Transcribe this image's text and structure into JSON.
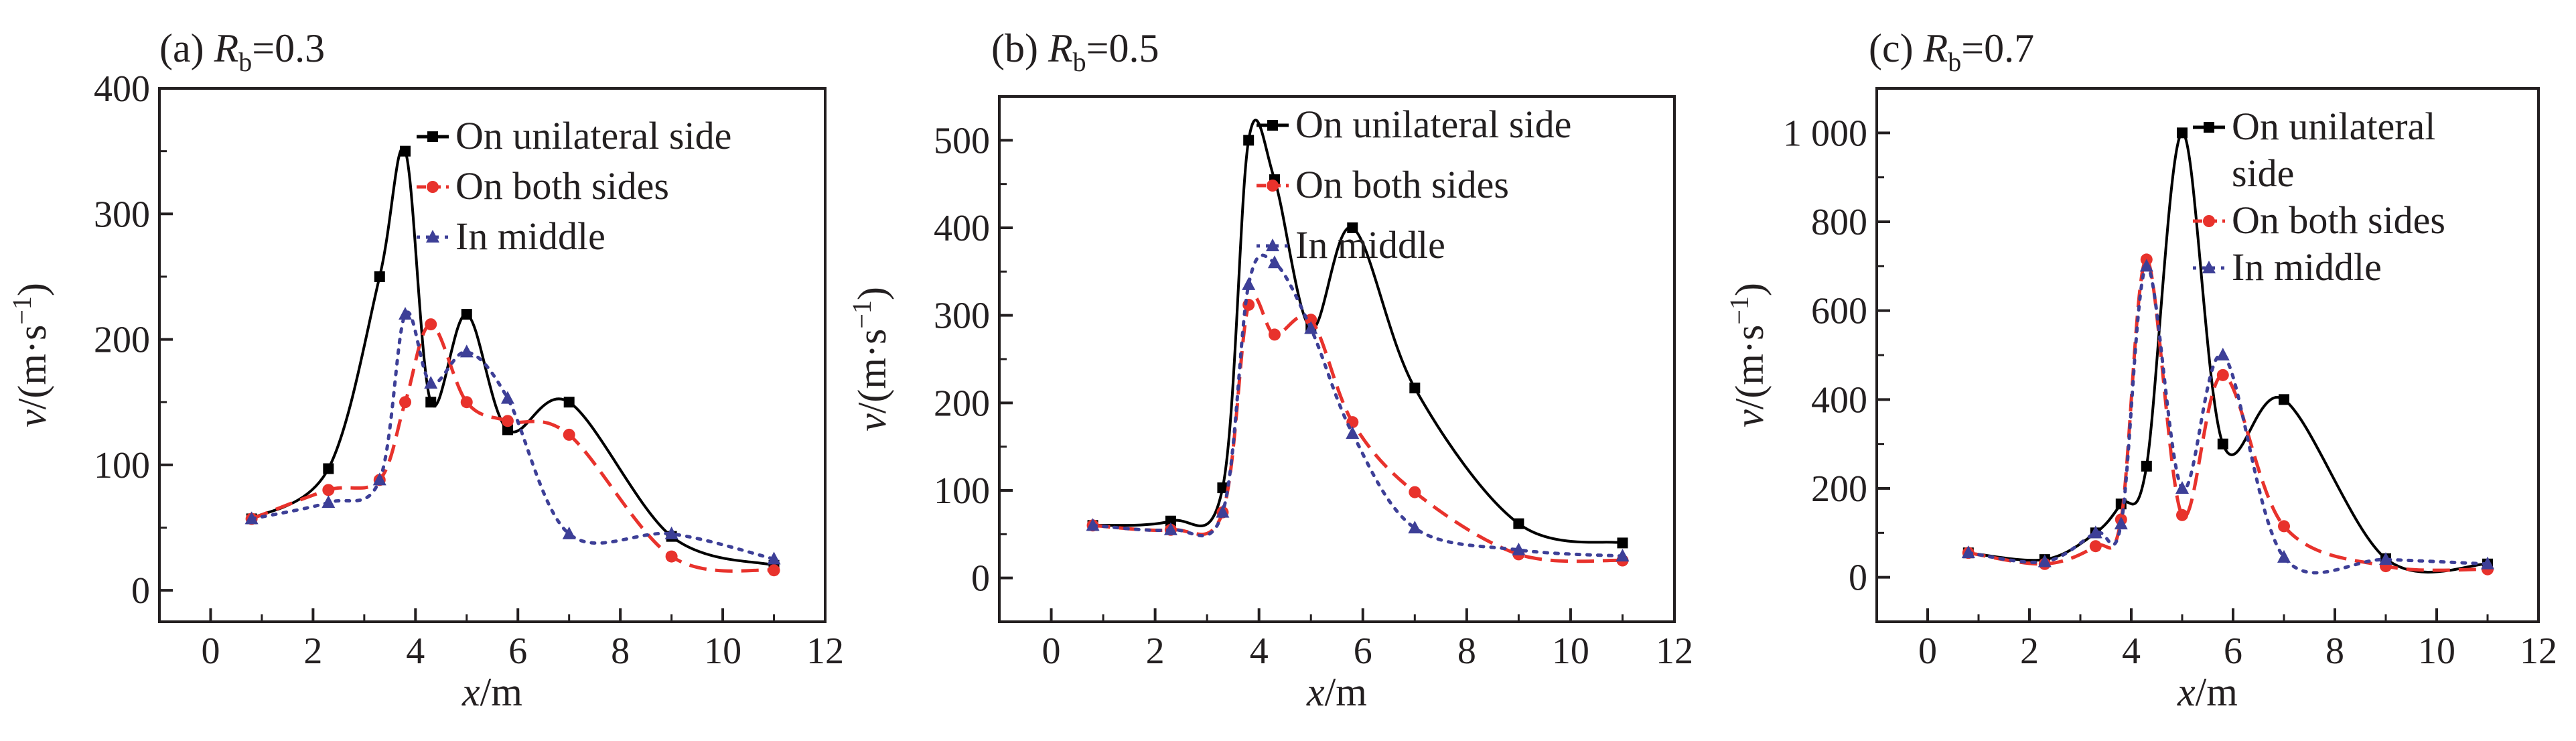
{
  "figure": {
    "series_styles": [
      {
        "color": "#000000",
        "dash": "",
        "marker": "square"
      },
      {
        "color": "#e8322c",
        "dash": "dash",
        "marker": "circle"
      },
      {
        "color": "#3d3f97",
        "dash": "dot",
        "marker": "triangle"
      }
    ]
  },
  "chart_data": [
    {
      "type": "line",
      "title_prefix": "(a) ",
      "title_var": "R",
      "title_sub": "b",
      "title_suffix": "=0.3",
      "xlabel_var": "x",
      "xlabel_unit": "/m",
      "ylabel_var": "v",
      "ylabel_unit": "/(m·s",
      "ylabel_exp": "−1",
      "ylabel_close": ")",
      "xlim": [
        -1,
        12
      ],
      "ylim": [
        -25,
        400
      ],
      "xticks": [
        0,
        2,
        4,
        6,
        8,
        10,
        12
      ],
      "xtick_labels": [
        "0",
        "2",
        "4",
        "6",
        "8",
        "10",
        "12"
      ],
      "yticks": [
        0,
        100,
        200,
        300,
        400
      ],
      "ytick_labels": [
        "0",
        "100",
        "200",
        "300",
        "400"
      ],
      "legend": [
        "On unilateral side",
        "On both sides",
        "In middle"
      ],
      "legend_position": "top-right",
      "series": [
        {
          "name": "On unilateral side",
          "x": [
            0.8,
            2.3,
            3.3,
            3.8,
            4.3,
            5.0,
            5.8,
            7.0,
            9.0,
            11.0
          ],
          "y": [
            57,
            97,
            250,
            350,
            150,
            220,
            128,
            150,
            43,
            20
          ]
        },
        {
          "name": "On both sides",
          "x": [
            0.8,
            2.3,
            3.3,
            3.8,
            4.3,
            5.0,
            5.8,
            7.0,
            9.0,
            11.0
          ],
          "y": [
            57,
            80,
            88,
            150,
            212,
            150,
            135,
            124,
            27,
            16
          ]
        },
        {
          "name": "In middle",
          "x": [
            0.8,
            2.3,
            3.3,
            3.8,
            4.3,
            5.0,
            5.8,
            7.0,
            9.0,
            11.0
          ],
          "y": [
            57,
            70,
            88,
            220,
            165,
            190,
            153,
            45,
            45,
            25
          ]
        }
      ]
    },
    {
      "type": "line",
      "title_prefix": "(b) ",
      "title_var": "R",
      "title_sub": "b",
      "title_suffix": "=0.5",
      "xlabel_var": "x",
      "xlabel_unit": "/m",
      "ylabel_var": "v",
      "ylabel_unit": "/(m·s",
      "ylabel_exp": "−1",
      "ylabel_close": ")",
      "xlim": [
        -1,
        12
      ],
      "ylim": [
        -50,
        550
      ],
      "xticks": [
        0,
        2,
        4,
        6,
        8,
        10,
        12
      ],
      "xtick_labels": [
        "0",
        "2",
        "4",
        "6",
        "8",
        "10",
        "12"
      ],
      "yticks": [
        0,
        100,
        200,
        300,
        400,
        500
      ],
      "ytick_labels": [
        "0",
        "100",
        "200",
        "300",
        "400",
        "500"
      ],
      "legend": [
        "On unilateral side",
        "On both sides",
        "In middle"
      ],
      "legend_position": "top-right",
      "series": [
        {
          "name": "On unilateral side",
          "x": [
            0.8,
            2.3,
            3.3,
            3.8,
            4.3,
            5.0,
            5.8,
            7.0,
            9.0,
            11.0
          ],
          "y": [
            60,
            65,
            103,
            500,
            455,
            285,
            400,
            217,
            62,
            40
          ]
        },
        {
          "name": "On both sides",
          "x": [
            0.8,
            2.3,
            3.3,
            3.8,
            4.3,
            5.0,
            5.8,
            7.0,
            9.0,
            11.0
          ],
          "y": [
            60,
            55,
            75,
            312,
            278,
            295,
            178,
            98,
            27,
            20
          ]
        },
        {
          "name": "In middle",
          "x": [
            0.8,
            2.3,
            3.3,
            3.8,
            4.3,
            5.0,
            5.8,
            7.0,
            9.0,
            11.0
          ],
          "y": [
            60,
            55,
            75,
            335,
            360,
            285,
            165,
            57,
            32,
            25
          ]
        }
      ]
    },
    {
      "type": "line",
      "title_prefix": "(c) ",
      "title_var": "R",
      "title_sub": "b",
      "title_suffix": "=0.7",
      "xlabel_var": "x",
      "xlabel_unit": "/m",
      "ylabel_var": "v",
      "ylabel_unit": "/(m·s",
      "ylabel_exp": "−1",
      "ylabel_close": ")",
      "xlim": [
        -1,
        12
      ],
      "ylim": [
        -100,
        1100
      ],
      "xticks": [
        0,
        2,
        4,
        6,
        8,
        10,
        12
      ],
      "xtick_labels": [
        "0",
        "2",
        "4",
        "6",
        "8",
        "10",
        "12"
      ],
      "yticks": [
        0,
        200,
        400,
        600,
        800,
        1000
      ],
      "ytick_labels": [
        "0",
        "200",
        "400",
        "600",
        "800",
        "1 000"
      ],
      "legend": [
        "On unilateral side",
        "On both sides",
        "In middle"
      ],
      "legend_position": "top-right",
      "series": [
        {
          "name": "On unilateral side",
          "x": [
            0.8,
            2.3,
            3.3,
            3.8,
            4.3,
            5.0,
            5.8,
            7.0,
            9.0,
            11.0
          ],
          "y": [
            55,
            40,
            100,
            165,
            250,
            1000,
            300,
            400,
            42,
            30
          ]
        },
        {
          "name": "On both sides",
          "x": [
            0.8,
            2.3,
            3.3,
            3.8,
            4.3,
            5.0,
            5.8,
            7.0,
            9.0,
            11.0
          ],
          "y": [
            55,
            30,
            70,
            130,
            715,
            140,
            455,
            115,
            25,
            18
          ]
        },
        {
          "name": "In middle",
          "x": [
            0.8,
            2.3,
            3.3,
            3.8,
            4.3,
            5.0,
            5.8,
            7.0,
            9.0,
            11.0
          ],
          "y": [
            55,
            35,
            100,
            120,
            700,
            200,
            500,
            45,
            40,
            30
          ]
        }
      ]
    }
  ]
}
